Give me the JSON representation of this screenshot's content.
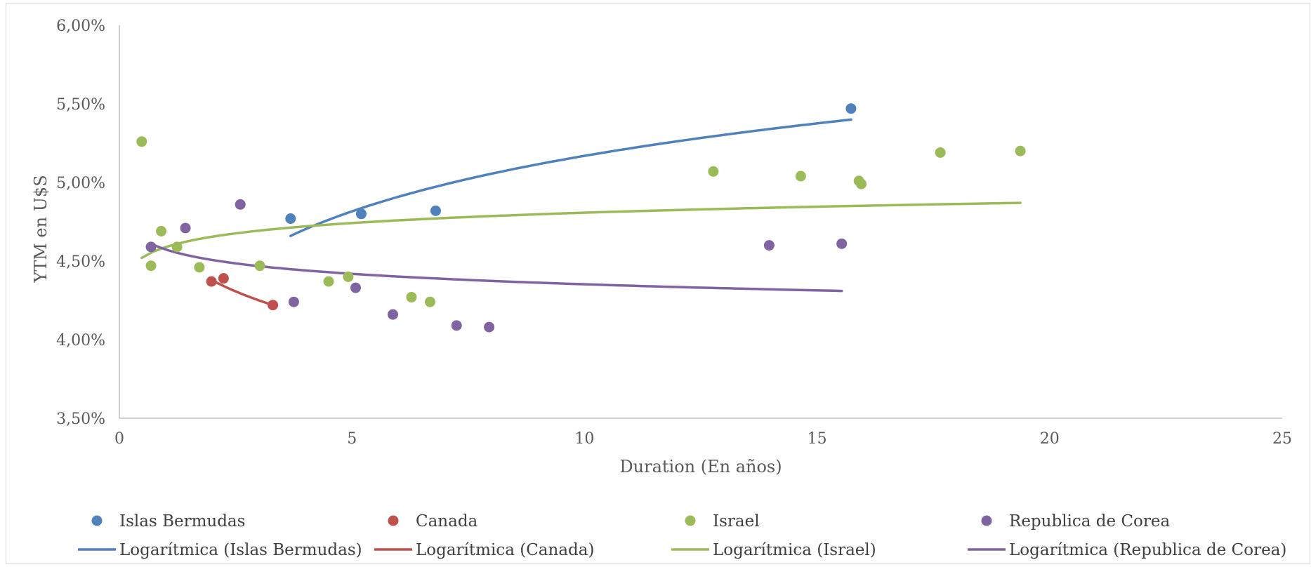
{
  "chart_data": {
    "type": "scatter",
    "xlabel": "Duration (En años)",
    "ylabel": "YTM en U$S",
    "xlim": [
      0,
      25
    ],
    "ylim": [
      3.5,
      6.0
    ],
    "x_ticks": [
      0,
      5,
      10,
      15,
      20,
      25
    ],
    "x_tick_labels": [
      "0",
      "5",
      "10",
      "15",
      "20",
      "25"
    ],
    "y_ticks": [
      3.5,
      4.0,
      4.5,
      5.0,
      5.5,
      6.0
    ],
    "y_tick_labels": [
      "3,50%",
      "4,00%",
      "4,50%",
      "5,00%",
      "5,50%",
      "6,00%"
    ],
    "grid": false,
    "legend_position": "bottom",
    "series": [
      {
        "name": "Islas Bermudas",
        "color": "#4f81bd",
        "points": [
          [
            3.68,
            4.77
          ],
          [
            5.2,
            4.8
          ],
          [
            6.8,
            4.82
          ],
          [
            15.73,
            5.47
          ]
        ]
      },
      {
        "name": "Canada",
        "color": "#c0504d",
        "points": [
          [
            1.98,
            4.37
          ],
          [
            2.24,
            4.39
          ],
          [
            3.3,
            4.22
          ]
        ]
      },
      {
        "name": "Israel",
        "color": "#9bbb59",
        "points": [
          [
            0.48,
            5.26
          ],
          [
            0.68,
            4.47
          ],
          [
            0.9,
            4.69
          ],
          [
            1.24,
            4.59
          ],
          [
            1.72,
            4.46
          ],
          [
            3.02,
            4.47
          ],
          [
            4.5,
            4.37
          ],
          [
            4.92,
            4.4
          ],
          [
            6.28,
            4.27
          ],
          [
            6.68,
            4.24
          ],
          [
            12.77,
            5.07
          ],
          [
            14.65,
            5.04
          ],
          [
            15.9,
            5.01
          ],
          [
            15.95,
            4.99
          ],
          [
            17.65,
            5.19
          ],
          [
            19.37,
            5.2
          ]
        ]
      },
      {
        "name": "Republica de Corea",
        "color": "#8064a2",
        "points": [
          [
            0.68,
            4.59
          ],
          [
            1.42,
            4.71
          ],
          [
            2.6,
            4.86
          ],
          [
            3.75,
            4.24
          ],
          [
            5.08,
            4.33
          ],
          [
            5.88,
            4.16
          ],
          [
            7.25,
            4.09
          ],
          [
            7.95,
            4.08
          ],
          [
            13.97,
            4.6
          ],
          [
            15.53,
            4.61
          ]
        ]
      }
    ],
    "trendlines": [
      {
        "name": "Logarítmica (Islas Bermudas)",
        "color": "#4f81bd",
        "type": "logarithmic",
        "x_range": [
          3.68,
          15.73
        ],
        "y_start": 4.66,
        "y_end": 5.4
      },
      {
        "name": "Logarítmica (Canada)",
        "color": "#c0504d",
        "type": "logarithmic",
        "x_range": [
          1.98,
          3.3
        ],
        "y_start": 4.38,
        "y_end": 4.22
      },
      {
        "name": "Logarítmica (Israel)",
        "color": "#9bbb59",
        "type": "logarithmic",
        "x_range": [
          0.48,
          19.37
        ],
        "y_start": 4.52,
        "y_end": 4.87
      },
      {
        "name": "Logarítmica (Republica de Corea)",
        "color": "#8064a2",
        "type": "logarithmic",
        "x_range": [
          0.68,
          15.53
        ],
        "y_start": 4.61,
        "y_end": 4.31
      }
    ]
  }
}
